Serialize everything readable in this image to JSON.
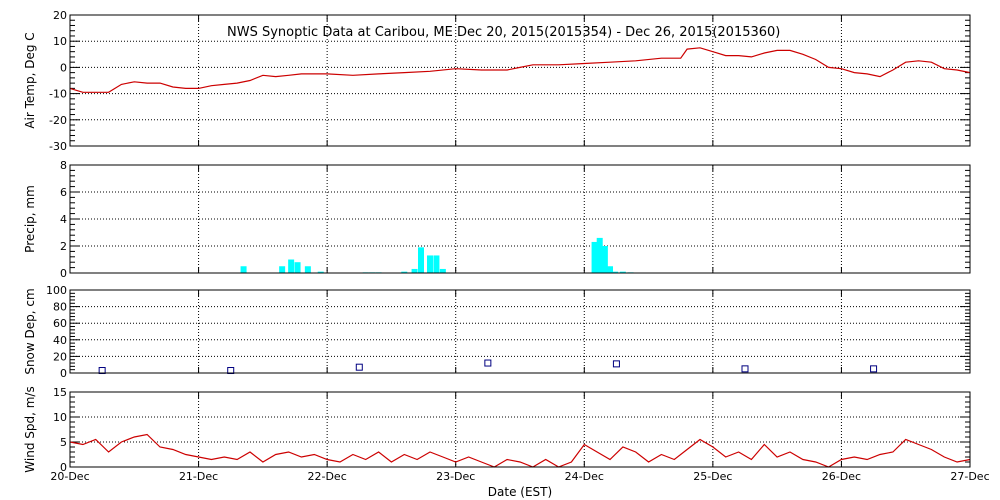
{
  "title": "NWS Synoptic Data at Caribou, ME    Dec 20, 2015(2015354) - Dec 26, 2015(2015360)",
  "xlabel": "Date (EST)",
  "x_ticks": [
    "20-Dec",
    "21-Dec",
    "22-Dec",
    "23-Dec",
    "24-Dec",
    "25-Dec",
    "26-Dec",
    "27-Dec"
  ],
  "colors": {
    "line": "#cc0000",
    "bar": "#00ffff",
    "marker": "#000080",
    "grid": "#000000"
  },
  "chart_data": [
    {
      "type": "line",
      "ylabel": "Air Temp, Deg C",
      "ylim": [
        -30,
        20
      ],
      "yticks": [
        "20",
        "10",
        "0",
        "-10",
        "-20",
        "-30"
      ],
      "grid": true,
      "x": [
        0,
        0.1,
        0.3,
        0.4,
        0.5,
        0.6,
        0.7,
        0.8,
        0.9,
        1.0,
        1.1,
        1.2,
        1.3,
        1.4,
        1.5,
        1.6,
        1.7,
        1.8,
        1.9,
        2.0,
        2.2,
        2.4,
        2.6,
        2.8,
        3.0,
        3.2,
        3.4,
        3.5,
        3.6,
        3.8,
        4.0,
        4.2,
        4.4,
        4.6,
        4.75,
        4.8,
        4.9,
        5.0,
        5.1,
        5.2,
        5.3,
        5.4,
        5.5,
        5.6,
        5.7,
        5.8,
        5.9,
        6.0,
        6.1,
        6.2,
        6.3,
        6.4,
        6.5,
        6.6,
        6.7,
        6.8,
        6.9,
        7.0
      ],
      "series": [
        {
          "values": [
            -8,
            -9.5,
            -9.5,
            -6.5,
            -5.5,
            -6,
            -6,
            -7.5,
            -8,
            -8,
            -7,
            -6.5,
            -6,
            -5,
            -3,
            -3.5,
            -3,
            -2.5,
            -2.5,
            -2.5,
            -3,
            -2.5,
            -2,
            -1.5,
            -0.5,
            -1,
            -1,
            0,
            1,
            1,
            1.5,
            2,
            2.5,
            3.5,
            3.5,
            7,
            7.5,
            6,
            4.5,
            4.5,
            4,
            5.5,
            6.5,
            6.5,
            5,
            3,
            0,
            -0.5,
            -2,
            -2.5,
            -3.5,
            -1,
            2,
            2.5,
            2,
            -0.5,
            -1,
            -2
          ]
        }
      ]
    },
    {
      "type": "bar",
      "ylabel": "Precip, mm",
      "ylim": [
        0,
        8
      ],
      "yticks": [
        "8",
        "6",
        "4",
        "2",
        "0"
      ],
      "grid": true,
      "x": [
        1.35,
        1.65,
        1.72,
        1.77,
        1.85,
        1.95,
        2.3,
        2.35,
        2.4,
        2.6,
        2.68,
        2.73,
        2.8,
        2.85,
        2.9,
        4.08,
        4.12,
        4.16,
        4.2,
        4.24,
        4.3,
        4.36
      ],
      "values": [
        0.5,
        0.5,
        1.0,
        0.8,
        0.5,
        0.1,
        0.05,
        0.05,
        0.05,
        0.1,
        0.3,
        1.9,
        1.3,
        1.3,
        0.3,
        2.3,
        2.6,
        2.0,
        0.5,
        0.1,
        0.1,
        0.05
      ]
    },
    {
      "type": "scatter",
      "ylabel": "Snow Dep, cm",
      "ylim": [
        0,
        100
      ],
      "yticks": [
        "100",
        "80",
        "60",
        "40",
        "20",
        "0"
      ],
      "grid": true,
      "x": [
        0.25,
        1.25,
        2.25,
        3.25,
        4.25,
        5.25,
        6.25
      ],
      "values": [
        3,
        3,
        7,
        12,
        11,
        5,
        5
      ]
    },
    {
      "type": "line",
      "ylabel": "Wind Spd, m/s",
      "ylim": [
        0,
        15
      ],
      "yticks": [
        "15",
        "10",
        "5",
        "0"
      ],
      "grid": true,
      "x": [
        0,
        0.1,
        0.2,
        0.3,
        0.4,
        0.5,
        0.6,
        0.7,
        0.8,
        0.9,
        1.0,
        1.1,
        1.2,
        1.3,
        1.4,
        1.5,
        1.6,
        1.7,
        1.8,
        1.9,
        2.0,
        2.1,
        2.2,
        2.3,
        2.4,
        2.5,
        2.6,
        2.7,
        2.8,
        2.9,
        3.0,
        3.1,
        3.2,
        3.3,
        3.4,
        3.5,
        3.6,
        3.7,
        3.8,
        3.9,
        4.0,
        4.1,
        4.2,
        4.3,
        4.4,
        4.5,
        4.6,
        4.7,
        4.8,
        4.9,
        5.0,
        5.1,
        5.2,
        5.3,
        5.4,
        5.5,
        5.6,
        5.7,
        5.8,
        5.9,
        6.0,
        6.1,
        6.2,
        6.3,
        6.4,
        6.5,
        6.6,
        6.7,
        6.8,
        6.9,
        7.0
      ],
      "series": [
        {
          "values": [
            5,
            4.5,
            5.5,
            3,
            5,
            6,
            6.5,
            4,
            3.5,
            2.5,
            2,
            1.5,
            2,
            1.5,
            3,
            1,
            2.5,
            3,
            2,
            2.5,
            1.5,
            1,
            2.5,
            1.5,
            3,
            1,
            2.5,
            1.5,
            3,
            2,
            1,
            2,
            1,
            0,
            1.5,
            1,
            0,
            1.5,
            0,
            1,
            4.5,
            3,
            1.5,
            4,
            3,
            1,
            2.5,
            1.5,
            3.5,
            5.5,
            4,
            2,
            3,
            1.5,
            4.5,
            2,
            3,
            1.5,
            1,
            0,
            1.5,
            2,
            1.5,
            2.5,
            3,
            5.5,
            4.5,
            3.5,
            2,
            1,
            1.5
          ]
        }
      ]
    }
  ]
}
